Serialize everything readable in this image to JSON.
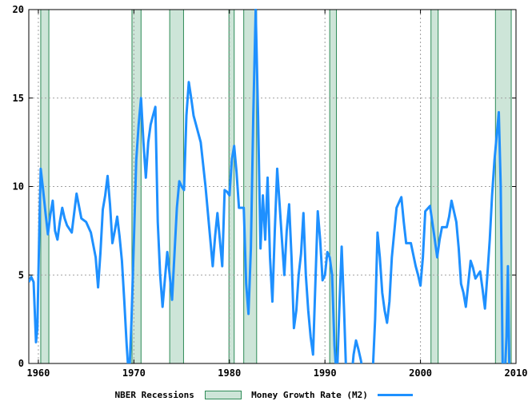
{
  "chart_data": {
    "type": "line",
    "xlim": [
      1959,
      2010
    ],
    "ylim": [
      0,
      20
    ],
    "x_ticks": [
      "1960",
      "1970",
      "1980",
      "1990",
      "2000",
      "2010"
    ],
    "y_ticks": [
      "0",
      "5",
      "10",
      "15",
      "20"
    ],
    "grid": true,
    "legend_position": "bottom",
    "colors": {
      "line": "#1e90ff",
      "recession_fill": "#cde5d8",
      "recession_edge": "#2e8b57",
      "grid": "#a0a0a0"
    },
    "recessions": [
      {
        "start": 1960.25,
        "end": 1961.1
      },
      {
        "start": 1969.8,
        "end": 1970.75
      },
      {
        "start": 1973.75,
        "end": 1975.2
      },
      {
        "start": 1979.95,
        "end": 1980.5
      },
      {
        "start": 1981.5,
        "end": 1982.85
      },
      {
        "start": 1990.5,
        "end": 1991.2
      },
      {
        "start": 2001.1,
        "end": 2001.85
      },
      {
        "start": 2007.85,
        "end": 2009.5
      }
    ],
    "series": [
      {
        "name": "Money Growth Rate (M2)",
        "points": [
          [
            1959,
            4.6
          ],
          [
            1959.25,
            4.9
          ],
          [
            1959.5,
            4.6
          ],
          [
            1959.75,
            1.2
          ],
          [
            1959.9,
            2.0
          ],
          [
            1960.1,
            7.5
          ],
          [
            1960.25,
            11.0
          ],
          [
            1960.5,
            9.8
          ],
          [
            1960.75,
            8.5
          ],
          [
            1961.0,
            7.3
          ],
          [
            1961.25,
            8.4
          ],
          [
            1961.5,
            9.2
          ],
          [
            1961.75,
            7.5
          ],
          [
            1962.0,
            7.0
          ],
          [
            1962.25,
            8.0
          ],
          [
            1962.5,
            8.8
          ],
          [
            1962.75,
            8.2
          ],
          [
            1963.0,
            7.8
          ],
          [
            1963.5,
            7.4
          ],
          [
            1964.0,
            9.6
          ],
          [
            1964.5,
            8.2
          ],
          [
            1965.0,
            8.0
          ],
          [
            1965.5,
            7.4
          ],
          [
            1966.0,
            6.0
          ],
          [
            1966.25,
            4.3
          ],
          [
            1966.5,
            6.3
          ],
          [
            1966.75,
            8.7
          ],
          [
            1967.0,
            9.5
          ],
          [
            1967.25,
            10.6
          ],
          [
            1967.5,
            9.0
          ],
          [
            1967.75,
            6.8
          ],
          [
            1968.0,
            7.5
          ],
          [
            1968.25,
            8.3
          ],
          [
            1968.5,
            7.2
          ],
          [
            1968.75,
            5.8
          ],
          [
            1969.0,
            3.5
          ],
          [
            1969.25,
            1.0
          ],
          [
            1969.5,
            -1.0
          ],
          [
            1969.75,
            2.5
          ],
          [
            1970.0,
            7.0
          ],
          [
            1970.25,
            11.5
          ],
          [
            1970.5,
            13.5
          ],
          [
            1970.75,
            15.0
          ],
          [
            1971.0,
            12.5
          ],
          [
            1971.25,
            10.5
          ],
          [
            1971.5,
            12.5
          ],
          [
            1971.75,
            13.5
          ],
          [
            1972.0,
            14.0
          ],
          [
            1972.25,
            14.5
          ],
          [
            1972.5,
            8.0
          ],
          [
            1972.75,
            5.0
          ],
          [
            1973.0,
            3.2
          ],
          [
            1973.25,
            4.8
          ],
          [
            1973.5,
            6.3
          ],
          [
            1973.75,
            5.0
          ],
          [
            1974.0,
            3.6
          ],
          [
            1974.25,
            6.2
          ],
          [
            1974.5,
            8.8
          ],
          [
            1974.75,
            10.3
          ],
          [
            1975.0,
            10.0
          ],
          [
            1975.25,
            9.8
          ],
          [
            1975.5,
            14.0
          ],
          [
            1975.75,
            15.9
          ],
          [
            1976.0,
            15.0
          ],
          [
            1976.25,
            14.0
          ],
          [
            1976.5,
            13.5
          ],
          [
            1977.0,
            12.5
          ],
          [
            1977.5,
            10.0
          ],
          [
            1978.0,
            7.0
          ],
          [
            1978.25,
            5.5
          ],
          [
            1978.5,
            7.2
          ],
          [
            1978.75,
            8.5
          ],
          [
            1979.0,
            7.0
          ],
          [
            1979.25,
            5.5
          ],
          [
            1979.5,
            9.8
          ],
          [
            1979.75,
            9.7
          ],
          [
            1980.0,
            9.5
          ],
          [
            1980.25,
            11.5
          ],
          [
            1980.5,
            12.3
          ],
          [
            1980.75,
            10.8
          ],
          [
            1981.0,
            8.8
          ],
          [
            1981.5,
            8.8
          ],
          [
            1981.75,
            4.5
          ],
          [
            1982.0,
            2.8
          ],
          [
            1982.25,
            6.5
          ],
          [
            1982.5,
            14.0
          ],
          [
            1982.75,
            20.0
          ],
          [
            1983.0,
            14.0
          ],
          [
            1983.25,
            6.5
          ],
          [
            1983.5,
            9.5
          ],
          [
            1983.75,
            7.0
          ],
          [
            1984.0,
            10.5
          ],
          [
            1984.25,
            6.0
          ],
          [
            1984.5,
            3.5
          ],
          [
            1984.75,
            7.5
          ],
          [
            1985.0,
            11.0
          ],
          [
            1985.25,
            9.0
          ],
          [
            1985.5,
            7.0
          ],
          [
            1985.75,
            5.0
          ],
          [
            1986.0,
            7.5
          ],
          [
            1986.25,
            9.0
          ],
          [
            1986.5,
            6.0
          ],
          [
            1986.75,
            2.0
          ],
          [
            1987.0,
            3.0
          ],
          [
            1987.25,
            5.0
          ],
          [
            1987.5,
            6.2
          ],
          [
            1987.75,
            8.5
          ],
          [
            1988.0,
            5.0
          ],
          [
            1988.25,
            3.0
          ],
          [
            1988.5,
            1.5
          ],
          [
            1988.75,
            0.5
          ],
          [
            1989.0,
            4.5
          ],
          [
            1989.25,
            8.6
          ],
          [
            1989.5,
            7.0
          ],
          [
            1989.75,
            4.7
          ],
          [
            1990.0,
            5.0
          ],
          [
            1990.25,
            6.3
          ],
          [
            1990.5,
            6.0
          ],
          [
            1990.75,
            5.0
          ],
          [
            1991.0,
            1.0
          ],
          [
            1991.25,
            -1.0
          ],
          [
            1991.5,
            3.0
          ],
          [
            1991.75,
            6.6
          ],
          [
            1992.0,
            3.0
          ],
          [
            1992.25,
            -1.0
          ],
          [
            1992.75,
            -1.0
          ],
          [
            1993.0,
            0.5
          ],
          [
            1993.25,
            1.3
          ],
          [
            1993.5,
            0.8
          ],
          [
            1993.75,
            0.2
          ],
          [
            1994.0,
            -0.5
          ],
          [
            1994.5,
            -1.0
          ],
          [
            1995.0,
            -0.5
          ],
          [
            1995.25,
            2.5
          ],
          [
            1995.5,
            7.4
          ],
          [
            1995.75,
            6.0
          ],
          [
            1996.0,
            4.0
          ],
          [
            1996.25,
            3.0
          ],
          [
            1996.5,
            2.3
          ],
          [
            1996.75,
            3.5
          ],
          [
            1997.0,
            6.0
          ],
          [
            1997.5,
            8.8
          ],
          [
            1998.0,
            9.4
          ],
          [
            1998.25,
            8.0
          ],
          [
            1998.5,
            6.8
          ],
          [
            1999.0,
            6.8
          ],
          [
            1999.5,
            5.5
          ],
          [
            1999.75,
            5.0
          ],
          [
            2000.0,
            4.4
          ],
          [
            2000.25,
            6.0
          ],
          [
            2000.5,
            8.6
          ],
          [
            2001.0,
            8.9
          ],
          [
            2001.5,
            7.0
          ],
          [
            2001.75,
            6.0
          ],
          [
            2002.0,
            7.0
          ],
          [
            2002.25,
            7.7
          ],
          [
            2002.75,
            7.7
          ],
          [
            2003.0,
            8.3
          ],
          [
            2003.25,
            9.2
          ],
          [
            2003.75,
            8.0
          ],
          [
            2004.0,
            6.5
          ],
          [
            2004.25,
            4.5
          ],
          [
            2004.5,
            4.0
          ],
          [
            2004.75,
            3.2
          ],
          [
            2005.0,
            4.5
          ],
          [
            2005.25,
            5.8
          ],
          [
            2005.5,
            5.4
          ],
          [
            2005.75,
            4.8
          ],
          [
            2006.0,
            5.0
          ],
          [
            2006.25,
            5.2
          ],
          [
            2006.5,
            4.2
          ],
          [
            2006.75,
            3.1
          ],
          [
            2007.0,
            5.0
          ],
          [
            2007.25,
            7.0
          ],
          [
            2007.5,
            9.5
          ],
          [
            2007.75,
            11.5
          ],
          [
            2008.0,
            13.0
          ],
          [
            2008.2,
            14.2
          ],
          [
            2008.4,
            10.0
          ],
          [
            2008.6,
            0.0
          ],
          [
            2008.8,
            -1.0
          ],
          [
            2009.0,
            1.5
          ],
          [
            2009.15,
            5.5
          ],
          [
            2009.3,
            0.0
          ],
          [
            2009.45,
            -1.0
          ]
        ]
      }
    ],
    "legend": {
      "recession_label": "NBER Recessions",
      "series_label": "Money Growth Rate (M2)"
    }
  }
}
